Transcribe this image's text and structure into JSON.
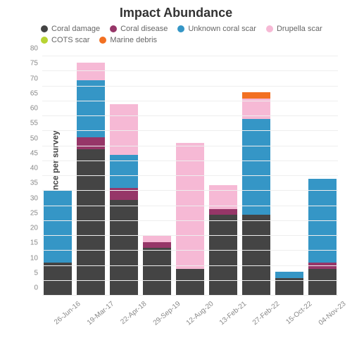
{
  "chart": {
    "type": "stacked-bar",
    "title": "Impact Abundance",
    "ylabel": "Abundance per survey",
    "ylim": [
      0,
      80
    ],
    "ytick_step": 5,
    "background_color": "#ffffff",
    "grid_color": "#eeeeee",
    "axis_text_color": "#888888",
    "title_fontsize": 18,
    "label_fontsize": 12,
    "series": [
      {
        "key": "coral_damage",
        "label": "Coral damage",
        "color": "#444444"
      },
      {
        "key": "coral_disease",
        "label": "Coral disease",
        "color": "#963668"
      },
      {
        "key": "unknown_scar",
        "label": "Unknown coral scar",
        "color": "#3596c6"
      },
      {
        "key": "drupella_scar",
        "label": "Drupella scar",
        "color": "#f6b9d5"
      },
      {
        "key": "cots_scar",
        "label": "COTS scar",
        "color": "#b7d332"
      },
      {
        "key": "marine_debris",
        "label": "Marine debris",
        "color": "#f27022"
      }
    ],
    "categories": [
      "26-Jun-16",
      "19-Mar-17",
      "22-Apr-18",
      "29-Sep-19",
      "12-Aug-20",
      "13-Feb-21",
      "27-Feb-22",
      "15-Oct-22",
      "04-Nov-23"
    ],
    "data": [
      {
        "coral_damage": 11,
        "coral_disease": 0,
        "unknown_scar": 24,
        "drupella_scar": 0,
        "cots_scar": 0,
        "marine_debris": 0
      },
      {
        "coral_damage": 49,
        "coral_disease": 4,
        "unknown_scar": 19,
        "drupella_scar": 6,
        "cots_scar": 0,
        "marine_debris": 0
      },
      {
        "coral_damage": 32,
        "coral_disease": 4,
        "unknown_scar": 11,
        "drupella_scar": 17,
        "cots_scar": 0,
        "marine_debris": 0
      },
      {
        "coral_damage": 16,
        "coral_disease": 2,
        "unknown_scar": 0,
        "drupella_scar": 2,
        "cots_scar": 0,
        "marine_debris": 0
      },
      {
        "coral_damage": 9,
        "coral_disease": 0,
        "unknown_scar": 0,
        "drupella_scar": 42,
        "cots_scar": 0,
        "marine_debris": 0
      },
      {
        "coral_damage": 27,
        "coral_disease": 2,
        "unknown_scar": 0,
        "drupella_scar": 8,
        "cots_scar": 0,
        "marine_debris": 0
      },
      {
        "coral_damage": 27,
        "coral_disease": 0,
        "unknown_scar": 32,
        "drupella_scar": 7,
        "cots_scar": 0,
        "marine_debris": 2
      },
      {
        "coral_damage": 6,
        "coral_disease": 0,
        "unknown_scar": 2,
        "drupella_scar": 0,
        "cots_scar": 0,
        "marine_debris": 0
      },
      {
        "coral_damage": 9,
        "coral_disease": 2,
        "unknown_scar": 28,
        "drupella_scar": 0,
        "cots_scar": 0,
        "marine_debris": 0
      }
    ]
  }
}
